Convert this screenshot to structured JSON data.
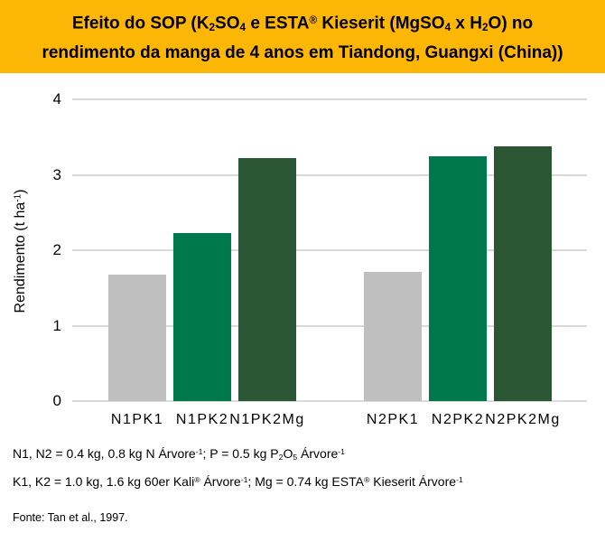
{
  "banner": {
    "bg_color": "#FCB606",
    "title_line1_segments": [
      {
        "t": "Efeito do SOP (K"
      },
      {
        "t": "2",
        "s": "sub"
      },
      {
        "t": "SO"
      },
      {
        "t": "4",
        "s": "sub"
      },
      {
        "t": " e ESTA"
      },
      {
        "t": "®",
        "s": "sup"
      },
      {
        "t": " Kieserit (MgSO"
      },
      {
        "t": "4",
        "s": "sub"
      },
      {
        "t": " x H"
      },
      {
        "t": "2",
        "s": "sub"
      },
      {
        "t": "O) no"
      }
    ],
    "title_line2_segments": [
      {
        "t": "rendimento da manga de 4 anos em Tiandong, Guangxi (China))"
      }
    ]
  },
  "chart_data": {
    "type": "bar",
    "title": "Efeito do SOP (K₂SO₄ e ESTA® Kieserit (MgSO₄ x H₂O) no rendimento da manga de 4 anos em Tiandong, Guangxi (China))",
    "categories": [
      "N1PK1",
      "N1PK2",
      "N1PK2Mg",
      "N2PK1",
      "N2PK2",
      "N2PK2Mg"
    ],
    "values": [
      1.68,
      2.23,
      3.22,
      1.71,
      3.24,
      3.38
    ],
    "bar_colors": [
      "#BFBFBF",
      "#00784E",
      "#2A5633",
      "#BFBFBF",
      "#00784E",
      "#2A5633"
    ],
    "groups": [
      [
        "N1PK1",
        "N1PK2",
        "N1PK2Mg"
      ],
      [
        "N2PK1",
        "N2PK2",
        "N2PK2Mg"
      ]
    ],
    "xlabel": "",
    "ylabel": "Rendimento (t ha⁻¹)",
    "ylabel_segments": [
      {
        "t": "Rendimento (t ha"
      },
      {
        "t": "-1",
        "s": "sup"
      },
      {
        "t": ")"
      }
    ],
    "ylim": [
      0,
      4
    ],
    "yticks": [
      0,
      1,
      2,
      3,
      4
    ],
    "grid": true,
    "gridline_color": "#D9D9D9",
    "legend_position": "none",
    "source": "Fonte: Tan et al., 1997."
  },
  "footnotes": {
    "line1_segments": [
      {
        "t": "N1, N2 = 0.4 kg, 0.8 kg N Árvore"
      },
      {
        "t": "-1",
        "s": "sup"
      },
      {
        "t": "; P = 0.5 kg P"
      },
      {
        "t": "2",
        "s": "sub"
      },
      {
        "t": "O"
      },
      {
        "t": "5",
        "s": "sub"
      },
      {
        "t": " Árvore"
      },
      {
        "t": "-1",
        "s": "sup"
      }
    ],
    "line2_segments": [
      {
        "t": "K1, K2 = 1.0 kg, 1.6 kg 60er Kali"
      },
      {
        "t": "®",
        "s": "sup"
      },
      {
        "t": " Árvore"
      },
      {
        "t": "-1",
        "s": "sup"
      },
      {
        "t": "; Mg = 0.74 kg ESTA"
      },
      {
        "t": "®",
        "s": "sup"
      },
      {
        "t": " Kieserit Árvore"
      },
      {
        "t": "-1",
        "s": "sup"
      }
    ]
  },
  "source_label": "Fonte: Tan et al., 1997."
}
